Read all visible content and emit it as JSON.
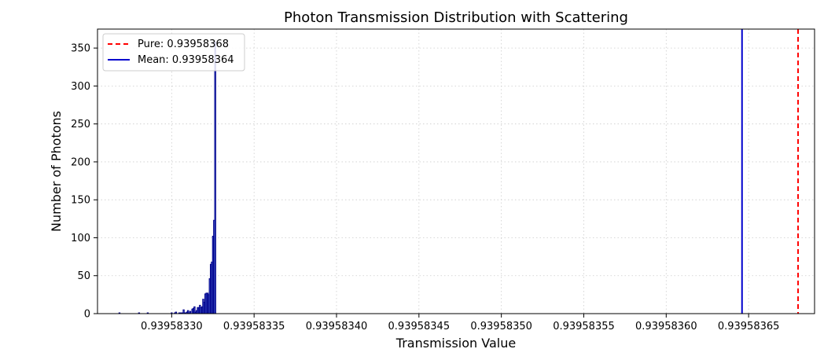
{
  "chart_data": {
    "type": "bar",
    "title": "Photon Transmission Distribution with Scattering",
    "xlabel": "Transmission Value",
    "ylabel": "Number of Photons",
    "xlim": [
      0.939583255,
      0.93958369
    ],
    "ylim": [
      0,
      375
    ],
    "xticks": [
      0.9395833,
      0.93958335,
      0.9395834,
      0.93958345,
      0.9395835,
      0.93958355,
      0.9395836,
      0.93958365
    ],
    "xtick_labels": [
      "0.93958330",
      "0.93958335",
      "0.93958340",
      "0.93958345",
      "0.93958350",
      "0.93958355",
      "0.93958360",
      "0.93958365"
    ],
    "yticks": [
      0,
      50,
      100,
      150,
      200,
      250,
      300,
      350
    ],
    "ytick_labels": [
      "0",
      "50",
      "100",
      "150",
      "200",
      "250",
      "300",
      "350"
    ],
    "grid": true,
    "legend_position": "top-left",
    "bin_start": 0.939583268,
    "bin_width": 6.6e-10,
    "counts": [
      1,
      0,
      0,
      0,
      0,
      0,
      0,
      0,
      0,
      0,
      0,
      0,
      0,
      0,
      0,
      0,
      0,
      0,
      1,
      0,
      0,
      0,
      0,
      0,
      0,
      0,
      1,
      0,
      0,
      0,
      0,
      0,
      0,
      0,
      0,
      0,
      0,
      0,
      0,
      0,
      0,
      0,
      0,
      0,
      0,
      0,
      0,
      0,
      1,
      0,
      0,
      1,
      2,
      0,
      0,
      1,
      1,
      1,
      1,
      5,
      1,
      1,
      2,
      4,
      1,
      3,
      0,
      6,
      7,
      9,
      2,
      4,
      8,
      8,
      11,
      8,
      9,
      19,
      15,
      26,
      27,
      27,
      25,
      46,
      65,
      68,
      102,
      123,
      358
    ],
    "bar_color": "#4169e1",
    "bar_edge_color": "#00008b",
    "reference_lines": [
      {
        "label": "Pure: 0.93958368",
        "value": 0.93958368,
        "color": "#ff0000",
        "style": "dashed"
      },
      {
        "label": "Mean: 0.93958364",
        "value": 0.939583646,
        "color": "#0000cd",
        "style": "solid"
      }
    ]
  }
}
